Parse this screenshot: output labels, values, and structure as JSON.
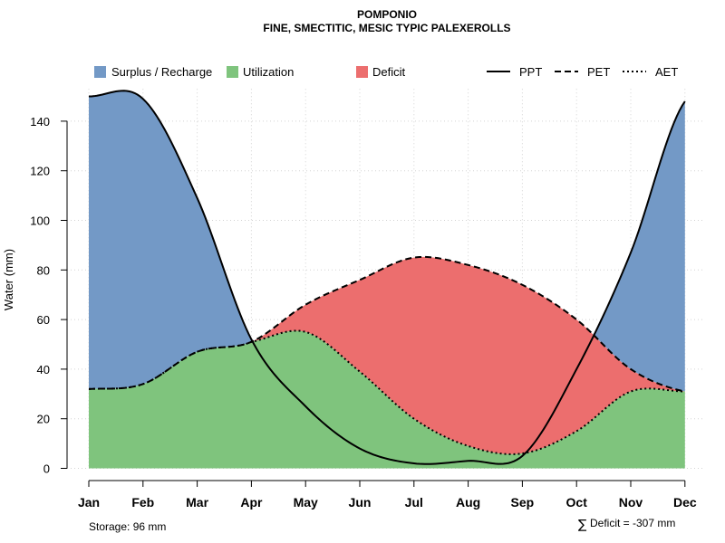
{
  "chart_data": {
    "type": "area",
    "title": "POMPONIO",
    "subtitle": "FINE, SMECTITIC, MESIC TYPIC PALEXEROLLS",
    "xlabel": "",
    "ylabel": "Water (mm)",
    "categories": [
      "Jan",
      "Feb",
      "Mar",
      "Apr",
      "May",
      "Jun",
      "Jul",
      "Aug",
      "Sep",
      "Oct",
      "Nov",
      "Dec"
    ],
    "ylim": [
      0,
      153
    ],
    "yticks": [
      0,
      20,
      40,
      60,
      80,
      100,
      120,
      140
    ],
    "grid": true,
    "series": [
      {
        "name": "PPT",
        "line": "solid",
        "values": [
          150,
          149,
          109,
          52,
          25,
          8,
          2,
          3,
          5,
          40,
          87,
          148
        ]
      },
      {
        "name": "PET",
        "line": "dashed",
        "values": [
          32,
          34,
          47,
          51,
          66,
          76,
          85,
          82,
          74,
          60,
          40,
          31
        ]
      },
      {
        "name": "AET",
        "line": "dotted",
        "values": [
          32,
          34,
          47,
          51,
          55,
          39,
          20,
          9,
          6,
          15,
          31,
          31
        ]
      }
    ],
    "legend": {
      "position": "top",
      "fills": [
        {
          "label": "Surplus / Recharge",
          "color": "#7399C6"
        },
        {
          "label": "Utilization",
          "color": "#7FC47D"
        },
        {
          "label": "Deficit",
          "color": "#EC6E6E"
        }
      ],
      "lines": [
        {
          "label": "PPT",
          "style": "solid"
        },
        {
          "label": "PET",
          "style": "dashed"
        },
        {
          "label": "AET",
          "style": "dotted"
        }
      ]
    },
    "annotations": {
      "storage": "Storage: 96 mm",
      "deficit_symbol": "∑",
      "deficit": "Deficit = -307 mm"
    }
  }
}
